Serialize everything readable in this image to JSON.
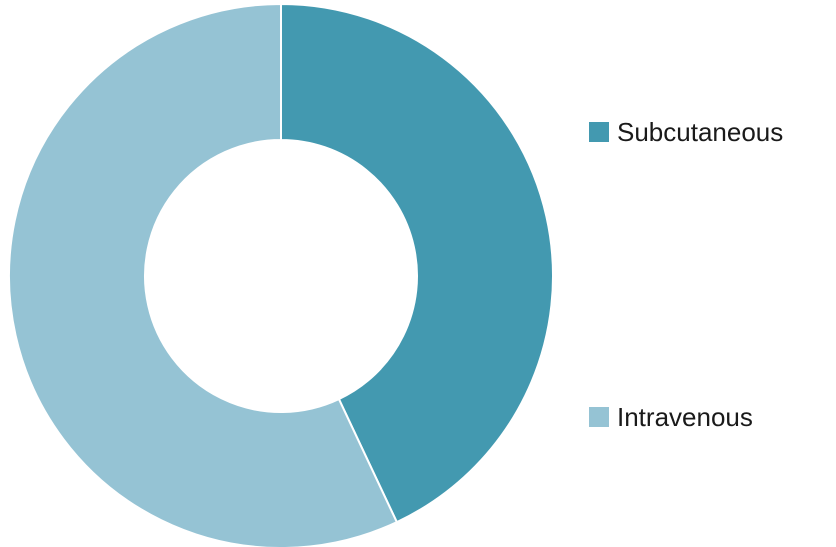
{
  "chart_data": {
    "type": "pie",
    "donut": true,
    "title": "",
    "legend_position": "right",
    "series": [
      {
        "name": "Subcutaneous",
        "value": 43,
        "color": "#4399b0"
      },
      {
        "name": "Intravenous",
        "value": 57,
        "color": "#95c3d4"
      }
    ],
    "start_angle_deg": 0,
    "direction": "clockwise"
  }
}
